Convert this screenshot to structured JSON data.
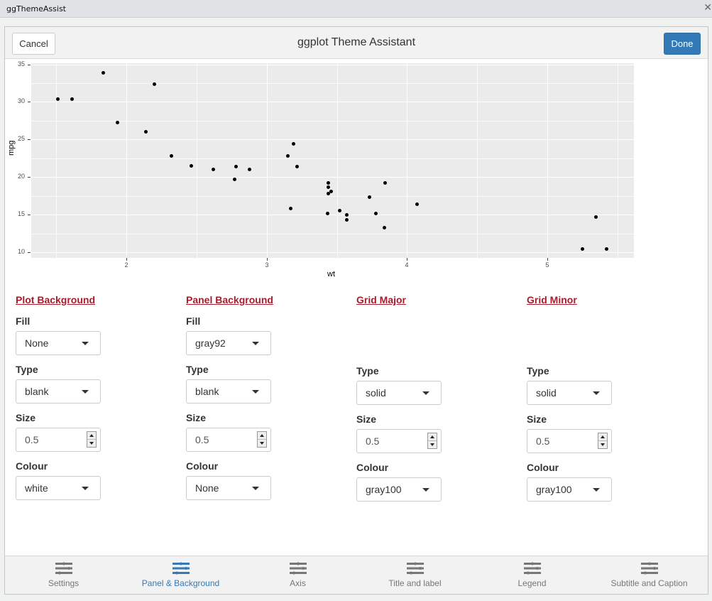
{
  "window": {
    "title": "ggThemeAssist",
    "close_glyph": "✕"
  },
  "header": {
    "cancel_label": "Cancel",
    "title": "ggplot Theme Assistant",
    "done_label": "Done"
  },
  "chart_data": {
    "type": "scatter",
    "title": "",
    "xlabel": "wt",
    "ylabel": "mpg",
    "xlim": [
      1.513,
      5.424
    ],
    "ylim": [
      10.4,
      33.9
    ],
    "x_ticks": [
      2,
      3,
      4,
      5
    ],
    "y_ticks": [
      10,
      15,
      20,
      25,
      30,
      35
    ],
    "grid": true,
    "points": [
      [
        2.62,
        21.0
      ],
      [
        2.875,
        21.0
      ],
      [
        2.32,
        22.8
      ],
      [
        3.215,
        21.4
      ],
      [
        3.44,
        18.7
      ],
      [
        3.46,
        18.1
      ],
      [
        3.57,
        14.3
      ],
      [
        3.19,
        24.4
      ],
      [
        3.15,
        22.8
      ],
      [
        3.44,
        19.2
      ],
      [
        3.44,
        17.8
      ],
      [
        4.07,
        16.4
      ],
      [
        3.73,
        17.3
      ],
      [
        3.78,
        15.2
      ],
      [
        5.25,
        10.4
      ],
      [
        5.424,
        10.4
      ],
      [
        5.345,
        14.7
      ],
      [
        2.2,
        32.4
      ],
      [
        1.615,
        30.4
      ],
      [
        1.835,
        33.9
      ],
      [
        2.465,
        21.5
      ],
      [
        3.52,
        15.5
      ],
      [
        3.435,
        15.2
      ],
      [
        3.84,
        13.3
      ],
      [
        3.845,
        19.2
      ],
      [
        1.935,
        27.3
      ],
      [
        2.14,
        26.0
      ],
      [
        1.513,
        30.4
      ],
      [
        3.17,
        15.8
      ],
      [
        2.77,
        19.7
      ],
      [
        3.57,
        15.0
      ],
      [
        2.78,
        21.4
      ]
    ]
  },
  "sections": [
    {
      "title": "Plot Background",
      "fill": {
        "label": "Fill",
        "value": "None"
      },
      "type": {
        "label": "Type",
        "value": "blank"
      },
      "size": {
        "label": "Size",
        "value": "0.5"
      },
      "colour": {
        "label": "Colour",
        "value": "white"
      }
    },
    {
      "title": "Panel Background",
      "fill": {
        "label": "Fill",
        "value": "gray92"
      },
      "type": {
        "label": "Type",
        "value": "blank"
      },
      "size": {
        "label": "Size",
        "value": "0.5"
      },
      "colour": {
        "label": "Colour",
        "value": "None"
      }
    },
    {
      "title": "Grid Major",
      "type": {
        "label": "Type",
        "value": "solid"
      },
      "size": {
        "label": "Size",
        "value": "0.5"
      },
      "colour": {
        "label": "Colour",
        "value": "gray100"
      }
    },
    {
      "title": "Grid Minor",
      "type": {
        "label": "Type",
        "value": "solid"
      },
      "size": {
        "label": "Size",
        "value": "0.5"
      },
      "colour": {
        "label": "Colour",
        "value": "gray100"
      }
    }
  ],
  "tabs": [
    {
      "label": "Settings",
      "icon": "sliders-icon",
      "active": false
    },
    {
      "label": "Panel & Background",
      "icon": "sliders-icon",
      "active": true
    },
    {
      "label": "Axis",
      "icon": "sliders-icon",
      "active": false
    },
    {
      "label": "Title and label",
      "icon": "sliders-icon",
      "active": false
    },
    {
      "label": "Legend",
      "icon": "sliders-icon",
      "active": false
    },
    {
      "label": "Subtitle and Caption",
      "icon": "sliders-icon",
      "active": false
    }
  ],
  "colors": {
    "accent": "#337ab7",
    "section_title": "#a61d2c",
    "panel_bg": "#ebebeb",
    "tab_inactive": "#777777"
  }
}
